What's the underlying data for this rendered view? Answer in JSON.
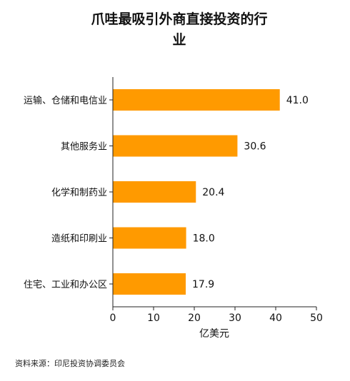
{
  "chart_data": {
    "type": "bar",
    "orientation": "horizontal",
    "title_lines": [
      "爪哇最吸引外商直接投资的行",
      "业"
    ],
    "categories": [
      "运输、仓储和电信业",
      "其他服务业",
      "化学和制药业",
      "造纸和印刷业",
      "住宅、工业和办公区"
    ],
    "values": [
      41.0,
      30.6,
      20.4,
      18.0,
      17.9
    ],
    "value_labels": [
      "41.0",
      "30.6",
      "20.4",
      "18.0",
      "17.9"
    ],
    "xlabel": "亿美元",
    "xlim": [
      0,
      50
    ],
    "xticks": [
      0,
      10,
      20,
      30,
      40,
      50
    ],
    "xtick_labels": [
      "0",
      "10",
      "20",
      "30",
      "40",
      "50"
    ],
    "grid": false,
    "bar_color": "#ff9a00",
    "source": "资料来源：印尼投资协调委员会"
  }
}
